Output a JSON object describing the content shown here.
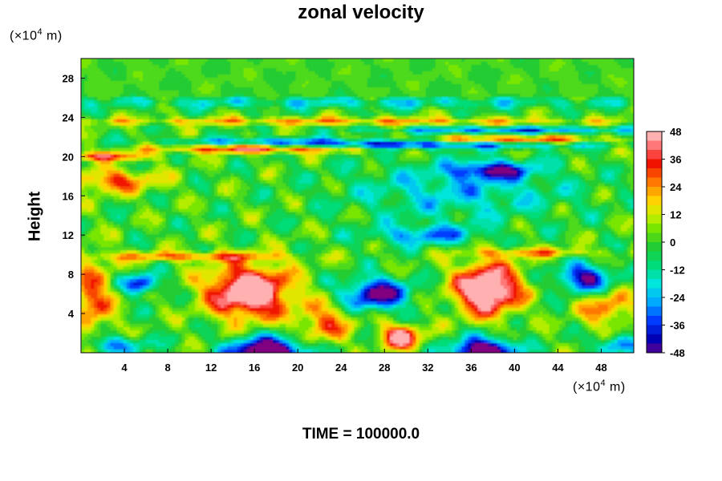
{
  "chart_data": {
    "type": "heatmap",
    "title": "zonal velocity",
    "ylabel": "Height",
    "xlabel": "",
    "x_unit_prefix": "(×10",
    "x_unit_exp": "4",
    "x_unit_suffix": " m)",
    "y_unit_prefix": "(×10",
    "y_unit_exp": "4",
    "y_unit_suffix": " m)",
    "xlim": [
      0,
      51
    ],
    "ylim": [
      0,
      30
    ],
    "x_ticks": [
      4,
      8,
      12,
      16,
      20,
      24,
      28,
      32,
      36,
      40,
      44,
      48
    ],
    "y_ticks": [
      4,
      8,
      12,
      16,
      20,
      24,
      28
    ],
    "x_tick_labels": [
      "4",
      "8",
      "12",
      "16",
      "20",
      "24",
      "28",
      "32",
      "36",
      "40",
      "44",
      "48"
    ],
    "y_tick_labels": [
      "4",
      "8",
      "12",
      "16",
      "20",
      "24",
      "28"
    ],
    "colorbar": {
      "min": -48,
      "max": 48,
      "ticks": [
        48,
        36,
        24,
        12,
        0,
        -12,
        -24,
        -36,
        -48
      ],
      "tick_labels": [
        "48",
        "36",
        "24",
        "12",
        "0",
        "-12",
        "-24",
        "-36",
        "-48"
      ],
      "colormap": "rainbow (purple-blue-cyan-green-yellow-red-pink)"
    },
    "features": [
      {
        "x": 15.5,
        "y": 6.5,
        "value": 48
      },
      {
        "x": 37.5,
        "y": 6.5,
        "value": 48
      },
      {
        "x": 17,
        "y": 0.7,
        "value": -48
      },
      {
        "x": 37,
        "y": 0.7,
        "value": -48
      },
      {
        "x": 29.5,
        "y": 1.7,
        "value": 40
      },
      {
        "x": 27.5,
        "y": 6,
        "value": -42
      },
      {
        "x": 46.5,
        "y": 7.5,
        "value": -40
      },
      {
        "x": 5.5,
        "y": 7,
        "value": -36
      },
      {
        "x": 38,
        "y": 18.7,
        "value": -36
      },
      {
        "x": 18,
        "y": 21,
        "value": 36
      }
    ]
  },
  "footer": {
    "time_label": "TIME = 100000.0"
  },
  "colors": {
    "min": "#800080",
    "zero": "#22cc33",
    "max": "#ffb0b0"
  }
}
